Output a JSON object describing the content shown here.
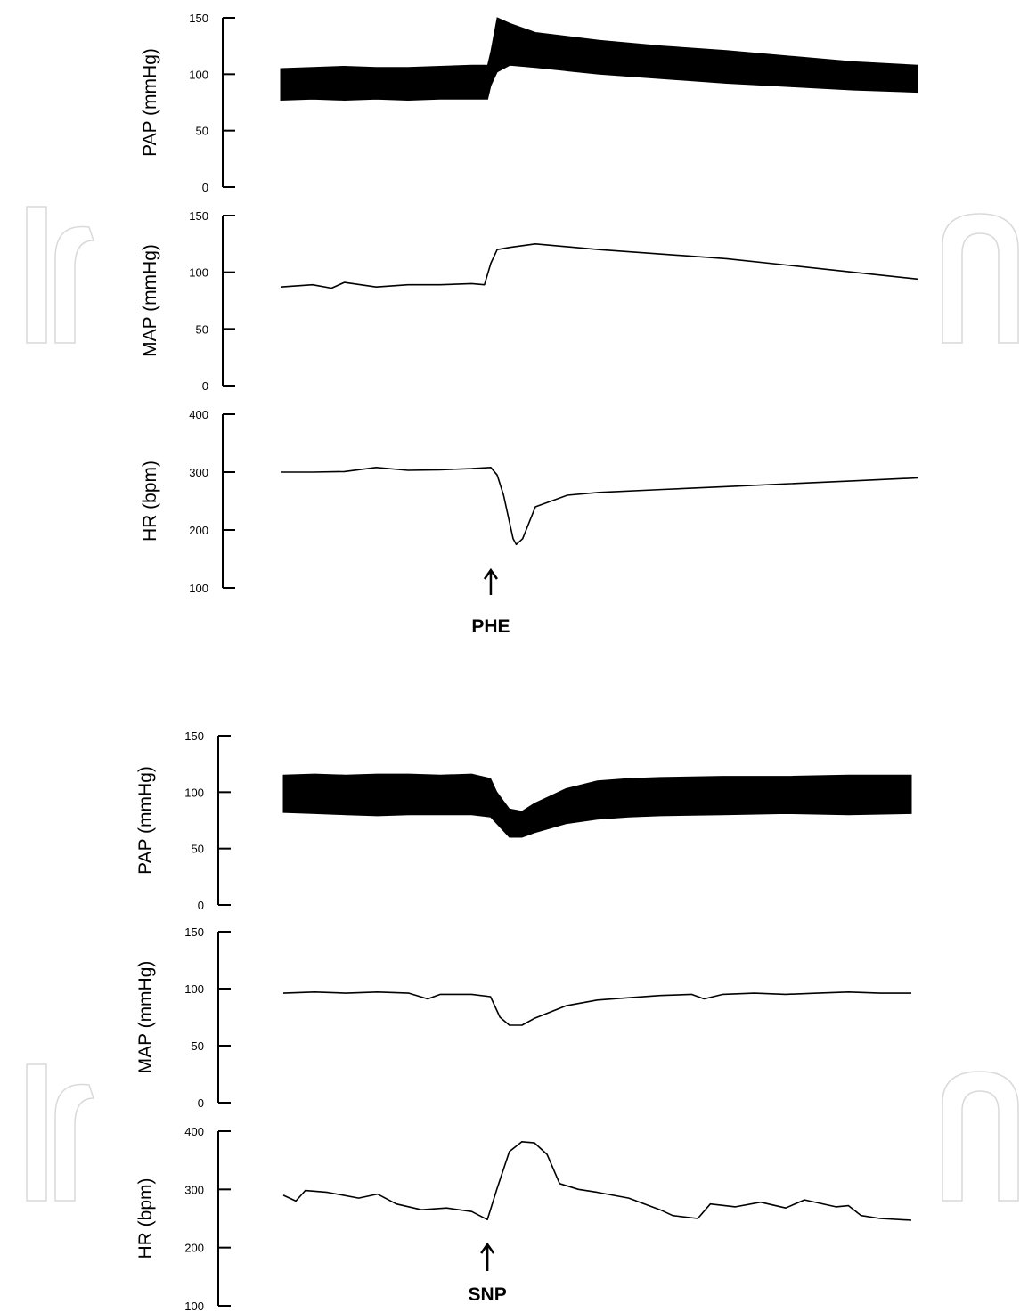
{
  "chart_data": [
    {
      "type": "line",
      "panel": "top",
      "annotation": "PHE",
      "annotation_x": 0.33,
      "x_range": [
        0,
        1
      ],
      "subplots": [
        {
          "id": "pap",
          "ylabel": "PAP (mmHg)",
          "ylim": [
            0,
            150
          ],
          "yticks": [
            0,
            50,
            100,
            150
          ],
          "render": "pulse-band",
          "x": [
            0,
            0.05,
            0.1,
            0.15,
            0.2,
            0.25,
            0.3,
            0.325,
            0.33,
            0.34,
            0.36,
            0.4,
            0.5,
            0.6,
            0.7,
            0.8,
            0.9,
            1.0
          ],
          "lower": [
            77,
            78,
            77,
            78,
            77,
            78,
            78,
            78,
            90,
            102,
            108,
            106,
            100,
            96,
            92,
            89,
            86,
            84
          ],
          "upper": [
            105,
            106,
            107,
            106,
            106,
            107,
            108,
            108,
            120,
            150,
            145,
            137,
            130,
            125,
            121,
            116,
            111,
            108
          ]
        },
        {
          "id": "map",
          "ylabel": "MAP (mmHg)",
          "ylim": [
            0,
            150
          ],
          "yticks": [
            0,
            50,
            100,
            150
          ],
          "render": "line",
          "x": [
            0,
            0.05,
            0.08,
            0.1,
            0.15,
            0.2,
            0.25,
            0.3,
            0.32,
            0.33,
            0.34,
            0.36,
            0.4,
            0.5,
            0.6,
            0.7,
            0.8,
            0.9,
            1.0
          ],
          "values": [
            87,
            89,
            86,
            91,
            87,
            89,
            89,
            90,
            89,
            108,
            120,
            122,
            125,
            120,
            116,
            112,
            106,
            100,
            94
          ]
        },
        {
          "id": "hr",
          "ylabel": "HR (bpm)",
          "ylim": [
            100,
            400
          ],
          "yticks": [
            100,
            200,
            300,
            400
          ],
          "render": "line",
          "x": [
            0,
            0.05,
            0.1,
            0.15,
            0.2,
            0.25,
            0.3,
            0.33,
            0.34,
            0.35,
            0.36,
            0.365,
            0.37,
            0.38,
            0.4,
            0.45,
            0.5,
            0.6,
            0.7,
            0.8,
            0.9,
            1.0
          ],
          "values": [
            300,
            300,
            301,
            308,
            303,
            304,
            306,
            308,
            295,
            260,
            210,
            185,
            175,
            185,
            240,
            260,
            265,
            270,
            275,
            280,
            285,
            290
          ]
        }
      ]
    },
    {
      "type": "line",
      "panel": "bottom",
      "annotation": "SNP",
      "annotation_x": 0.325,
      "x_range": [
        0,
        1
      ],
      "subplots": [
        {
          "id": "pap",
          "ylabel": "PAP (mmHg)",
          "ylim": [
            0,
            150
          ],
          "yticks": [
            0,
            50,
            100,
            150
          ],
          "render": "pulse-band",
          "x": [
            0,
            0.05,
            0.1,
            0.15,
            0.2,
            0.25,
            0.3,
            0.33,
            0.34,
            0.36,
            0.38,
            0.4,
            0.45,
            0.5,
            0.55,
            0.6,
            0.7,
            0.8,
            0.9,
            1.0
          ],
          "lower": [
            82,
            81,
            80,
            79,
            80,
            80,
            80,
            78,
            72,
            60,
            60,
            64,
            72,
            76,
            78,
            79,
            80,
            81,
            80,
            81
          ],
          "upper": [
            115,
            116,
            115,
            116,
            116,
            115,
            116,
            112,
            100,
            85,
            83,
            90,
            103,
            110,
            112,
            113,
            114,
            114,
            115,
            115
          ]
        },
        {
          "id": "map",
          "ylabel": "MAP (mmHg)",
          "ylim": [
            0,
            150
          ],
          "yticks": [
            0,
            50,
            100,
            150
          ],
          "render": "line",
          "x": [
            0,
            0.05,
            0.1,
            0.15,
            0.2,
            0.23,
            0.25,
            0.3,
            0.33,
            0.345,
            0.36,
            0.38,
            0.4,
            0.45,
            0.5,
            0.55,
            0.6,
            0.65,
            0.67,
            0.7,
            0.75,
            0.8,
            0.85,
            0.9,
            0.95,
            1.0
          ],
          "values": [
            96,
            97,
            96,
            97,
            96,
            91,
            95,
            95,
            93,
            75,
            68,
            68,
            74,
            85,
            90,
            92,
            94,
            95,
            91,
            95,
            96,
            95,
            96,
            97,
            96,
            96
          ]
        },
        {
          "id": "hr",
          "ylabel": "HR (bpm)",
          "ylim": [
            100,
            400
          ],
          "yticks": [
            100,
            200,
            300,
            400
          ],
          "render": "line",
          "x": [
            0,
            0.02,
            0.035,
            0.07,
            0.12,
            0.15,
            0.18,
            0.22,
            0.26,
            0.3,
            0.325,
            0.34,
            0.36,
            0.38,
            0.4,
            0.42,
            0.44,
            0.47,
            0.5,
            0.55,
            0.6,
            0.62,
            0.66,
            0.68,
            0.72,
            0.76,
            0.8,
            0.83,
            0.88,
            0.9,
            0.92,
            0.95,
            1.0
          ],
          "values": [
            290,
            280,
            298,
            295,
            285,
            292,
            275,
            265,
            268,
            262,
            248,
            300,
            365,
            382,
            380,
            360,
            310,
            300,
            295,
            285,
            265,
            255,
            250,
            275,
            270,
            278,
            268,
            282,
            270,
            272,
            255,
            250,
            247
          ]
        }
      ]
    }
  ]
}
